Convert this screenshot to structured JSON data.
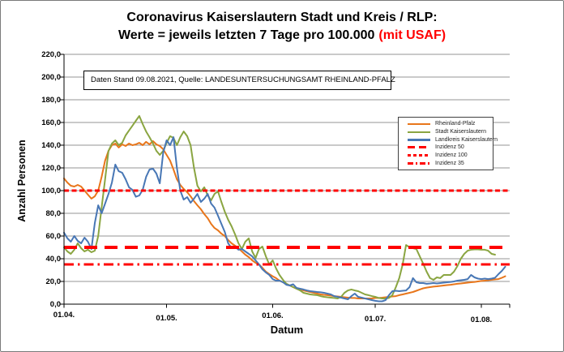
{
  "chart_data": {
    "type": "line",
    "title_line1": "Coronavirus Kaiserslautern Stadt und Kreis / RLP:",
    "title_line2": "Werte = jeweils letzten 7 Tage pro 100.000",
    "title_line2_red": "(mit USAF)",
    "info_box": "Daten Stand 09.08.2021, Quelle: LANDESUNTERSUCHUNGSAMT RHEINLAND-PFALZ",
    "xlabel": "Datum",
    "ylabel": "Anzahl Personen",
    "ylim": [
      0,
      220
    ],
    "ytick_step": 20,
    "ytick_labels": [
      "220,0",
      "200,0",
      "180,0",
      "160,0",
      "140,0",
      "120,0",
      "100,0",
      "80,0",
      "60,0",
      "40,0",
      "20,0",
      "0,0"
    ],
    "xtick_labels": [
      "01.04.",
      "01.05.",
      "01.06.",
      "01.07.",
      "01.08."
    ],
    "xtick_days": [
      0,
      30,
      61,
      91,
      122
    ],
    "x_total_days": 129,
    "grid": true,
    "legend_position": "right-inside",
    "colors": {
      "rlp": "#E8761B",
      "stadt": "#8AA541",
      "landkreis": "#4877B5",
      "inzidenz": "#FF0000",
      "gridline": "#949494",
      "axis": "#000000"
    },
    "legend": [
      {
        "label": "Rheinland-Pfalz"
      },
      {
        "label": "Stadt Kaiserslautern"
      },
      {
        "label": "Landkreis Kaiserslautern"
      },
      {
        "label": "Inzidenz 50"
      },
      {
        "label": "Inzidenz 100"
      },
      {
        "label": "Inzidenz 35"
      }
    ],
    "reference_lines": [
      {
        "name": "Inzidenz 100",
        "value": 100,
        "style": "short-dash"
      },
      {
        "name": "Inzidenz 50",
        "value": 50,
        "style": "long-dash"
      },
      {
        "name": "Inzidenz 35",
        "value": 35,
        "style": "dash-dot"
      }
    ],
    "series": [
      {
        "name": "Rheinland-Pfalz",
        "color": "#E8761B",
        "start_date": "01.04.",
        "values": [
          110.7,
          107.1,
          104.3,
          103.6,
          105.0,
          103.6,
          100.0,
          96.4,
          92.9,
          95.0,
          100.0,
          112.1,
          126.4,
          135.0,
          140.0,
          141.4,
          137.9,
          140.7,
          139.3,
          141.4,
          140.0,
          140.7,
          142.1,
          140.0,
          142.9,
          140.7,
          143.6,
          140.7,
          139.3,
          136.4,
          131.4,
          126.4,
          118.6,
          110.0,
          105.0,
          101.4,
          98.6,
          95.0,
          90.7,
          87.1,
          83.6,
          79.3,
          75.7,
          70.7,
          67.1,
          65.0,
          62.1,
          60.0,
          56.4,
          53.6,
          51.4,
          49.3,
          46.4,
          43.6,
          41.4,
          38.6,
          36.4,
          35.0,
          32.1,
          28.6,
          26.4,
          24.6,
          22.9,
          20.7,
          19.3,
          17.9,
          16.4,
          15.0,
          13.6,
          12.9,
          12.1,
          11.4,
          10.7,
          10.0,
          9.3,
          8.6,
          8.2,
          7.9,
          7.5,
          7.1,
          6.8,
          6.4,
          6.1,
          5.7,
          5.4,
          5.4,
          5.0,
          5.0,
          5.0,
          5.0,
          5.0,
          5.4,
          5.4,
          5.7,
          6.1,
          6.4,
          6.8,
          7.1,
          7.9,
          8.6,
          9.3,
          10.0,
          10.7,
          11.8,
          12.9,
          13.9,
          14.6,
          15.0,
          15.4,
          15.7,
          16.1,
          16.4,
          16.8,
          17.1,
          17.5,
          17.9,
          18.2,
          18.6,
          18.9,
          19.3,
          19.6,
          20.0,
          20.4,
          20.7,
          21.1,
          21.4,
          21.8,
          22.1,
          23.2,
          24.6
        ]
      },
      {
        "name": "Stadt Kaiserslautern",
        "color": "#8AA541",
        "start_date": "01.04.",
        "values": [
          50.0,
          46.4,
          44.3,
          47.9,
          53.6,
          49.3,
          46.4,
          47.9,
          45.7,
          47.1,
          60.0,
          85.0,
          110.0,
          135.0,
          141.4,
          144.3,
          140.0,
          142.1,
          148.6,
          152.9,
          157.1,
          161.4,
          165.7,
          158.6,
          152.1,
          147.1,
          141.4,
          135.0,
          131.4,
          135.0,
          142.1,
          147.9,
          146.4,
          140.0,
          147.1,
          152.1,
          147.9,
          140.0,
          120.0,
          104.3,
          99.3,
          102.9,
          95.7,
          91.4,
          97.1,
          99.3,
          90.0,
          81.4,
          74.3,
          68.6,
          61.4,
          53.6,
          48.6,
          55.0,
          57.9,
          46.4,
          40.7,
          48.6,
          50.7,
          42.1,
          35.0,
          38.6,
          31.4,
          25.7,
          21.4,
          17.9,
          16.4,
          15.0,
          13.6,
          12.1,
          10.0,
          9.3,
          8.6,
          8.2,
          7.9,
          7.1,
          6.4,
          6.1,
          5.7,
          5.4,
          5.0,
          6.4,
          10.0,
          12.1,
          12.9,
          12.1,
          11.4,
          10.0,
          8.6,
          7.9,
          7.1,
          6.4,
          5.4,
          5.0,
          5.0,
          5.4,
          7.9,
          15.0,
          22.9,
          35.0,
          52.1,
          50.0,
          49.3,
          48.6,
          42.1,
          35.7,
          28.6,
          22.9,
          21.4,
          23.6,
          22.9,
          25.7,
          25.7,
          25.7,
          28.6,
          33.6,
          40.0,
          44.3,
          47.1,
          47.9,
          48.2,
          48.2,
          47.9,
          47.9,
          47.1,
          44.3,
          43.6
        ]
      },
      {
        "name": "Landkreis Kaiserslautern",
        "color": "#4877B5",
        "start_date": "01.04.",
        "values": [
          62.9,
          57.9,
          55.0,
          60.0,
          55.7,
          53.6,
          58.6,
          55.0,
          48.6,
          71.4,
          87.1,
          80.0,
          88.6,
          97.1,
          107.1,
          122.9,
          117.1,
          115.7,
          110.0,
          102.9,
          100.7,
          94.6,
          95.7,
          100.7,
          112.1,
          118.6,
          119.3,
          115.0,
          106.4,
          133.6,
          144.3,
          140.0,
          147.1,
          120.0,
          100.0,
          92.1,
          94.3,
          89.3,
          92.9,
          97.1,
          90.0,
          92.9,
          97.1,
          88.6,
          85.0,
          77.9,
          70.7,
          63.6,
          53.6,
          49.3,
          50.7,
          47.9,
          48.6,
          46.4,
          44.3,
          42.1,
          38.6,
          35.0,
          30.7,
          27.9,
          25.7,
          22.1,
          20.7,
          20.7,
          19.3,
          17.1,
          16.4,
          17.5,
          14.3,
          13.6,
          12.9,
          12.1,
          11.4,
          11.1,
          10.7,
          10.4,
          10.0,
          9.3,
          8.6,
          7.1,
          6.4,
          5.7,
          5.0,
          4.3,
          7.1,
          9.3,
          6.4,
          5.7,
          5.0,
          4.3,
          3.6,
          2.9,
          2.5,
          2.5,
          3.6,
          7.9,
          11.4,
          11.8,
          11.4,
          11.8,
          12.1,
          15.0,
          22.9,
          19.3,
          18.6,
          18.6,
          17.9,
          18.2,
          18.6,
          18.2,
          18.6,
          18.9,
          19.3,
          19.6,
          20.0,
          20.7,
          21.1,
          21.4,
          22.1,
          25.7,
          23.6,
          22.5,
          22.1,
          22.5,
          22.1,
          22.5,
          23.2,
          26.4,
          29.3,
          32.9
        ]
      }
    ]
  }
}
